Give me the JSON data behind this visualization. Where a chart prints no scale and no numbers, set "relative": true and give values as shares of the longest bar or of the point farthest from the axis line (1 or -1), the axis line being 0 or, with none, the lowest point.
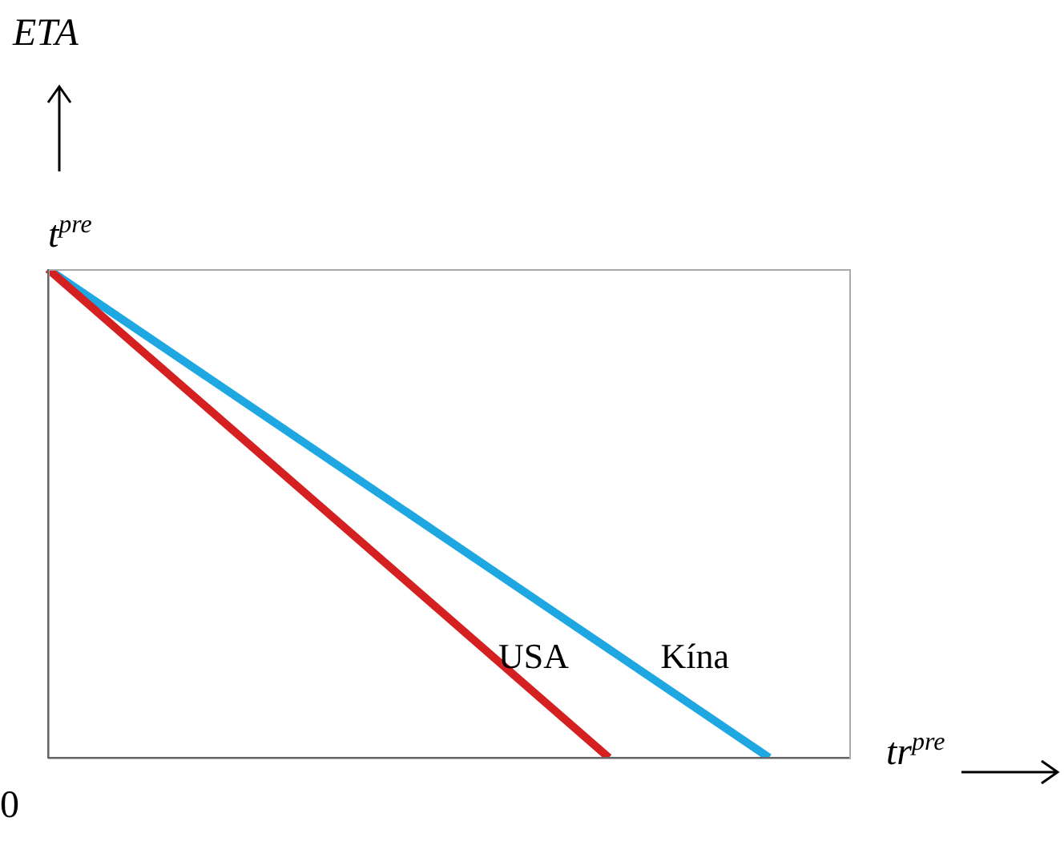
{
  "chart_data": {
    "type": "line",
    "relative": true,
    "xlabel": "tr$^{pre}$",
    "annotations": [
      "ETA",
      "t$^{pre}$",
      "0"
    ],
    "categories": [
      null,
      null,
      null,
      null,
      null,
      null,
      null,
      null,
      null,
      null,
      null
    ],
    "series": [
      {
        "name": "USA",
        "color": "#d42020",
        "values": [
          1,
          null,
          null,
          null,
          null,
          null,
          null,
          0,
          null,
          null,
          null
        ]
      },
      {
        "name": "Kína",
        "color": "#1ea7e1",
        "values": [
          1,
          null,
          null,
          null,
          null,
          null,
          null,
          null,
          null,
          0,
          null
        ]
      }
    ],
    "legend": false,
    "marker": "none",
    "line_style": "solid"
  }
}
